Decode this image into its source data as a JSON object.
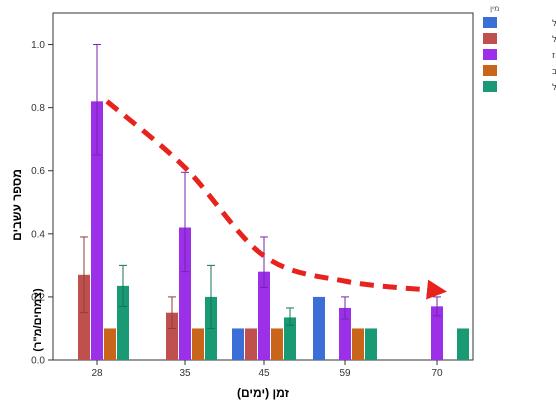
{
  "chart_data": {
    "type": "bar",
    "xlabel": "זמן (ימים)",
    "ylabel_line1": "מספר עשבים",
    "ylabel_line2": "(צמחים/מ\"ר)",
    "ylim": [
      0,
      1.1
    ],
    "yticks": [
      "0.0",
      "0.2",
      "0.4",
      "0.6",
      "0.8",
      "1.0"
    ],
    "categories": [
      "28",
      "35",
      "45",
      "59",
      "70"
    ],
    "legend": {
      "title": "מין",
      "placement": "top-right"
    },
    "series": [
      {
        "name": "חבלבל",
        "color": "#3b6ed6",
        "values": [
          null,
          null,
          0.1,
          0.2,
          null
        ],
        "err": [
          null,
          null,
          null,
          null,
          null
        ]
      },
      {
        "name": "חלבלוב זוחל",
        "color": "#c0504d",
        "values": [
          0.27,
          0.15,
          0.1,
          null,
          null
        ],
        "err": [
          [
            0.15,
            0.39
          ],
          [
            0.1,
            0.2
          ],
          null,
          null,
          null
        ]
      },
      {
        "name": "ירבוז",
        "color": "#9b30e8",
        "values": [
          0.82,
          0.42,
          0.28,
          0.165,
          0.17
        ],
        "err": [
          [
            0.65,
            1.0
          ],
          [
            0.28,
            0.595
          ],
          [
            0.23,
            0.39
          ],
          [
            0.13,
            0.2
          ],
          [
            0.14,
            0.2
          ]
        ]
      },
      {
        "name": "עוקץ העקרב",
        "color": "#c8651b",
        "values": [
          0.1,
          0.1,
          0.1,
          0.1,
          null
        ],
        "err": [
          null,
          null,
          null,
          null,
          null
        ]
      },
      {
        "name": "שיבולת שועל",
        "color": "#1a9a74",
        "values": [
          0.235,
          0.2,
          0.135,
          0.1,
          0.1
        ],
        "err": [
          [
            0.17,
            0.3
          ],
          [
            0.1,
            0.3
          ],
          [
            0.11,
            0.165
          ],
          null,
          null
        ]
      }
    ],
    "trend": {
      "type": "dashed-arrow",
      "color": "#e8231d",
      "points": [
        [
          0,
          0.82
        ],
        [
          1,
          0.61
        ],
        [
          2,
          0.33
        ],
        [
          3,
          0.25
        ],
        [
          4,
          0.22
        ]
      ]
    }
  }
}
